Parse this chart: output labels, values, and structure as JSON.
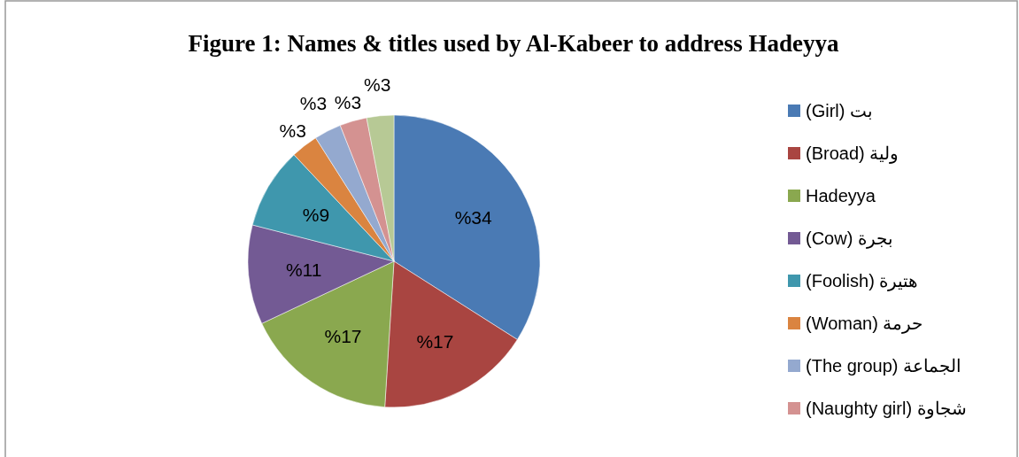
{
  "chart_data": {
    "type": "pie",
    "title": "Figure 1: Names & titles used by Al-Kabeer to address Hadeyya",
    "categories": [
      "(Girl) بت",
      "(Broad) ولية",
      "Hadeyya",
      "(Cow) بجرة",
      "(Foolish) هتيرة",
      "(Woman) حرمة",
      "(The group) الجماعة",
      "(Naughty girl) شجاوة",
      null
    ],
    "values": [
      34,
      17,
      17,
      11,
      9,
      3,
      3,
      3,
      3
    ],
    "value_labels": [
      "%34",
      "%17",
      "%17",
      "%11",
      "%9",
      "%3",
      "%3",
      "%3",
      "%3"
    ],
    "colors": [
      "#4a7ab4",
      "#a94541",
      "#8aa84f",
      "#735a94",
      "#3f97ad",
      "#da8440",
      "#94a9cf",
      "#d49291",
      "#b7c995"
    ],
    "legend": "right"
  }
}
